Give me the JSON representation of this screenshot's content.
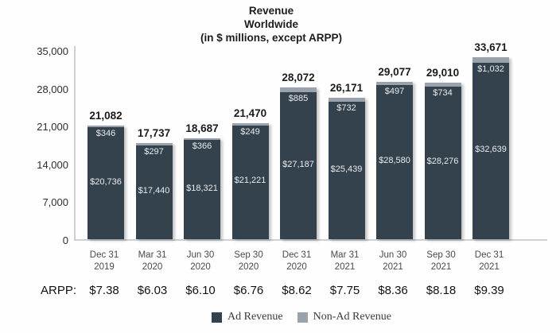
{
  "title": {
    "line1": "Revenue",
    "line2": "Worldwide",
    "line3": "(in $ millions, except ARPP)"
  },
  "arpp_label": "ARPP:",
  "chart_data": {
    "type": "bar",
    "stacked": true,
    "grid": false,
    "legend_position": "bottom",
    "title": "Revenue Worldwide (in $ millions, except ARPP)",
    "xlabel": "",
    "ylabel": "",
    "ylim": [
      0,
      35000
    ],
    "y_ticks": [
      0,
      7000,
      14000,
      21000,
      28000,
      35000
    ],
    "y_tick_labels": [
      "0",
      "7,000",
      "14,000",
      "21,000",
      "28,000",
      "35,000"
    ],
    "categories": [
      [
        "Dec 31",
        "2019"
      ],
      [
        "Mar 31",
        "2020"
      ],
      [
        "Jun 30",
        "2020"
      ],
      [
        "Sep 30",
        "2020"
      ],
      [
        "Dec 31",
        "2020"
      ],
      [
        "Mar 31",
        "2021"
      ],
      [
        "Jun 30",
        "2021"
      ],
      [
        "Sep 30",
        "2021"
      ],
      [
        "Dec 31",
        "2021"
      ]
    ],
    "series": [
      {
        "name": "Ad Revenue",
        "color": "#34424e",
        "values": [
          20736,
          17440,
          18321,
          21221,
          27187,
          25439,
          28580,
          28276,
          32639
        ],
        "labels": [
          "$20,736",
          "$17,440",
          "$18,321",
          "$21,221",
          "$27,187",
          "$25,439",
          "$28,580",
          "$28,276",
          "$32,639"
        ]
      },
      {
        "name": "Non-Ad Revenue",
        "color": "#9aa3ab",
        "values": [
          346,
          297,
          366,
          249,
          885,
          732,
          497,
          734,
          1032
        ],
        "labels": [
          "$346",
          "$297",
          "$366",
          "$249",
          "$885",
          "$732",
          "$497",
          "$734",
          "$1,032"
        ]
      }
    ],
    "totals": [
      21082,
      17737,
      18687,
      21470,
      28072,
      26171,
      29077,
      29010,
      33671
    ],
    "total_labels": [
      "21,082",
      "17,737",
      "18,687",
      "21,470",
      "28,072",
      "26,171",
      "29,077",
      "29,010",
      "33,671"
    ],
    "arpp": [
      "$7.38",
      "$6.03",
      "$6.10",
      "$6.76",
      "$8.62",
      "$7.75",
      "$8.36",
      "$8.18",
      "$9.39"
    ]
  }
}
